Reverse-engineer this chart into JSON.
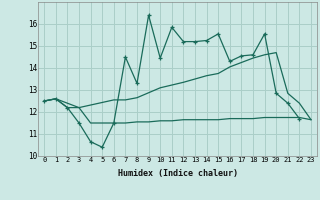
{
  "xlabel": "Humidex (Indice chaleur)",
  "background_color": "#cce8e4",
  "grid_color": "#aacec8",
  "line_color": "#1a6b5a",
  "xlim": [
    -0.5,
    23.5
  ],
  "ylim": [
    10,
    17
  ],
  "yticks": [
    10,
    11,
    12,
    13,
    14,
    15,
    16
  ],
  "xticks": [
    0,
    1,
    2,
    3,
    4,
    5,
    6,
    7,
    8,
    9,
    10,
    11,
    12,
    13,
    14,
    15,
    16,
    17,
    18,
    19,
    20,
    21,
    22,
    23
  ],
  "line1_x": [
    0,
    1,
    2,
    3,
    4,
    5,
    6,
    7,
    8,
    9,
    10,
    11,
    12,
    13,
    14,
    15,
    16,
    17,
    18,
    19,
    20,
    21,
    22
  ],
  "line1_y": [
    12.5,
    12.6,
    12.2,
    11.5,
    10.65,
    10.4,
    11.5,
    14.5,
    13.3,
    16.4,
    14.45,
    15.85,
    15.2,
    15.2,
    15.25,
    15.55,
    14.3,
    14.55,
    14.6,
    15.55,
    12.85,
    12.4,
    11.7
  ],
  "line2_x": [
    0,
    1,
    2,
    3,
    6,
    7,
    8,
    10,
    12,
    14,
    15,
    16,
    18,
    19,
    20,
    21,
    22,
    23
  ],
  "line2_y": [
    12.5,
    12.6,
    12.2,
    12.2,
    12.55,
    12.55,
    12.65,
    13.1,
    13.35,
    13.65,
    13.75,
    14.05,
    14.45,
    14.6,
    14.7,
    12.85,
    12.4,
    11.65
  ],
  "line3_x": [
    0,
    1,
    3,
    4,
    5,
    6,
    7,
    8,
    9,
    10,
    11,
    12,
    13,
    14,
    15,
    16,
    17,
    18,
    19,
    20,
    21,
    22,
    23
  ],
  "line3_y": [
    12.5,
    12.6,
    12.2,
    11.5,
    11.5,
    11.5,
    11.5,
    11.55,
    11.55,
    11.6,
    11.6,
    11.65,
    11.65,
    11.65,
    11.65,
    11.7,
    11.7,
    11.7,
    11.75,
    11.75,
    11.75,
    11.75,
    11.65
  ]
}
